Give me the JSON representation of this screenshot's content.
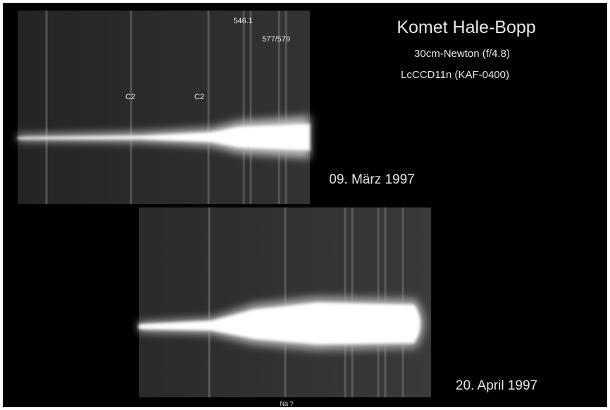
{
  "title": "Komet Hale-Bopp",
  "telescope": "30cm-Newton (f/4.8)",
  "camera": "LcCCD11n (KAF-0400)",
  "spectra": [
    {
      "date": "09. März 1997",
      "labels": [
        "546.1",
        "577/579",
        "C2",
        "C2"
      ]
    },
    {
      "date": "20. April 1997",
      "labels": [
        "Na ?"
      ]
    }
  ]
}
